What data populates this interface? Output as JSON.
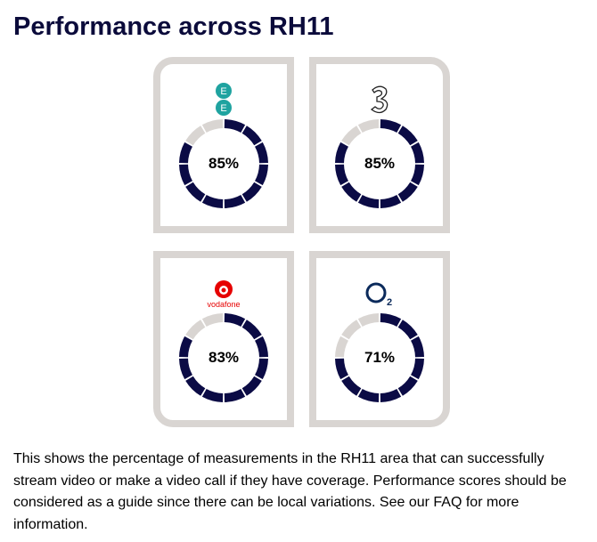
{
  "title": "Performance across RH11",
  "colors": {
    "filled": "#0b0b45",
    "empty": "#d9d5d2",
    "border": "#d9d5d2"
  },
  "operators": [
    {
      "name": "EE",
      "logo_icon": "ee-logo",
      "score": 85,
      "label": "85%"
    },
    {
      "name": "Three",
      "logo_icon": "three-logo",
      "score": 85,
      "label": "85%"
    },
    {
      "name": "Vodafone",
      "logo_icon": "vodafone-logo",
      "logo_text": "vodafone",
      "score": 83,
      "label": "83%"
    },
    {
      "name": "O2",
      "logo_icon": "o2-logo",
      "score": 71,
      "label": "71%"
    }
  ],
  "description": "This shows the percentage of measurements in the RH11 area that can successfully stream video or make a video call if they have coverage. Performance scores should be considered as a guide since there can be local variations. See our FAQ for more information."
}
